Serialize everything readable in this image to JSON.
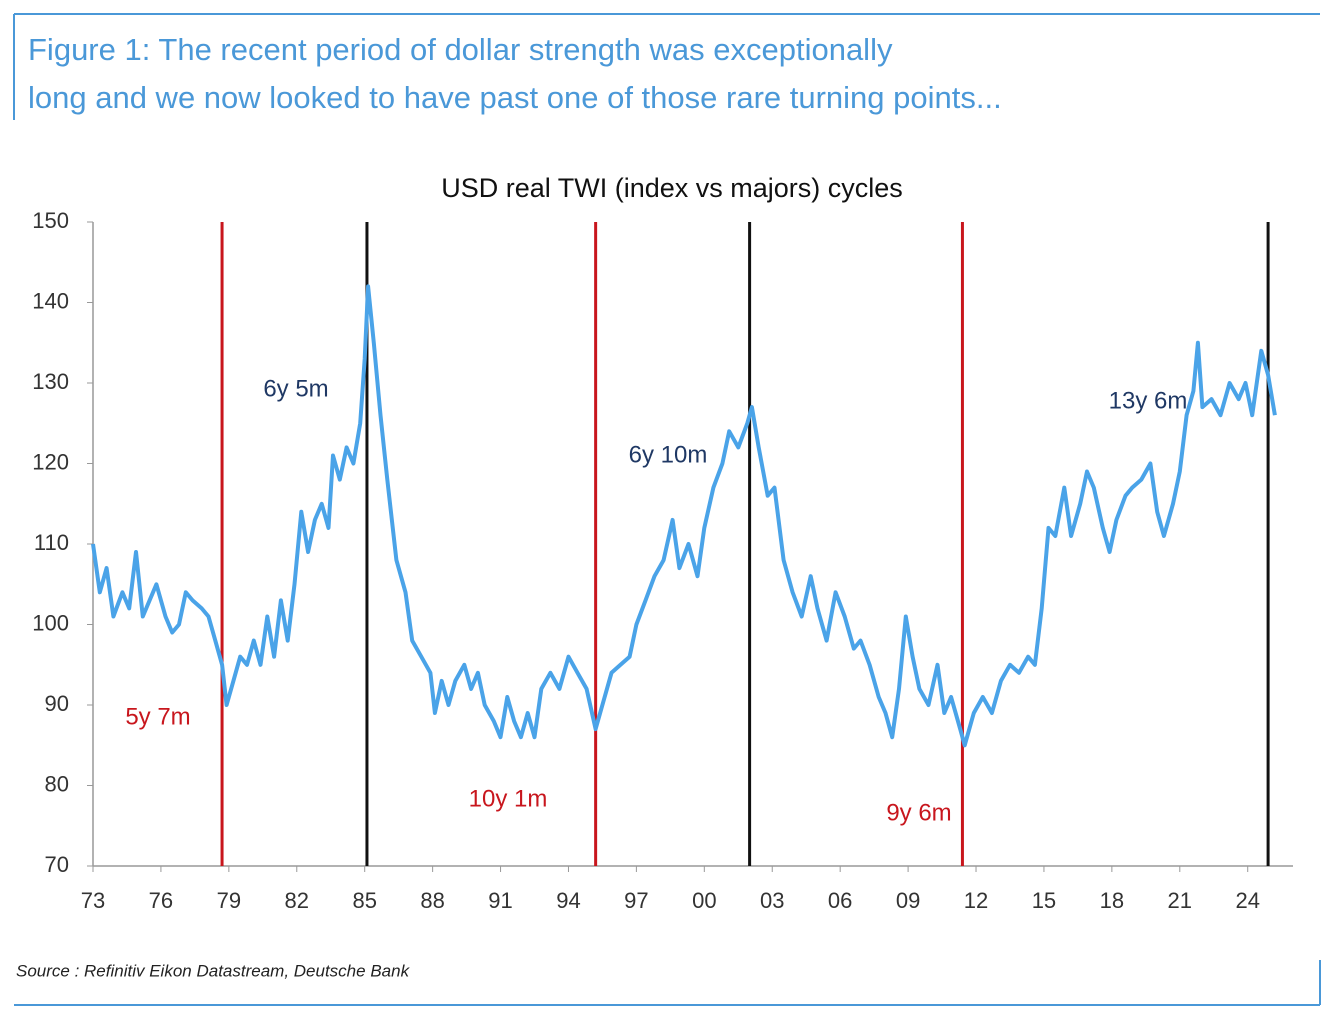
{
  "header": {
    "title_lines": [
      "Figure 1: The recent period of dollar strength was exceptionally",
      "long and we now looked to have past one of those rare turning points..."
    ]
  },
  "chart_data": {
    "type": "line",
    "title": "USD real TWI (index vs majors) cycles",
    "color": "#4aa3e8",
    "x": [
      1973.0,
      1973.3,
      1973.6,
      1973.9,
      1974.3,
      1974.6,
      1974.9,
      1975.2,
      1975.5,
      1975.8,
      1976.2,
      1976.5,
      1976.8,
      1977.1,
      1977.4,
      1977.8,
      1978.1,
      1978.4,
      1978.7,
      1978.9,
      1979.2,
      1979.5,
      1979.8,
      1980.1,
      1980.4,
      1980.7,
      1981.0,
      1981.3,
      1981.6,
      1981.9,
      1982.2,
      1982.5,
      1982.8,
      1983.1,
      1983.4,
      1983.6,
      1983.9,
      1984.2,
      1984.5,
      1984.8,
      1985.0,
      1985.15,
      1985.4,
      1985.7,
      1986.0,
      1986.4,
      1986.8,
      1987.1,
      1987.5,
      1987.9,
      1988.1,
      1988.4,
      1988.7,
      1989.0,
      1989.4,
      1989.7,
      1990.0,
      1990.3,
      1990.7,
      1991.0,
      1991.3,
      1991.6,
      1991.9,
      1992.2,
      1992.5,
      1992.8,
      1993.2,
      1993.6,
      1994.0,
      1994.4,
      1994.8,
      1995.2,
      1995.5,
      1995.9,
      1996.3,
      1996.7,
      1997.0,
      1997.4,
      1997.8,
      1998.2,
      1998.6,
      1998.9,
      1999.3,
      1999.7,
      2000.0,
      2000.4,
      2000.8,
      2001.1,
      2001.5,
      2001.9,
      2002.1,
      2002.4,
      2002.8,
      2003.1,
      2003.5,
      2003.9,
      2004.3,
      2004.7,
      2005.0,
      2005.4,
      2005.8,
      2006.2,
      2006.6,
      2006.9,
      2007.3,
      2007.7,
      2008.0,
      2008.3,
      2008.6,
      2008.9,
      2009.2,
      2009.5,
      2009.9,
      2010.3,
      2010.6,
      2010.9,
      2011.3,
      2011.5,
      2011.9,
      2012.3,
      2012.7,
      2013.1,
      2013.5,
      2013.9,
      2014.3,
      2014.6,
      2014.9,
      2015.2,
      2015.5,
      2015.9,
      2016.2,
      2016.6,
      2016.9,
      2017.2,
      2017.6,
      2017.9,
      2018.2,
      2018.6,
      2018.9,
      2019.3,
      2019.7,
      2020.0,
      2020.3,
      2020.7,
      2021.0,
      2021.3,
      2021.6,
      2021.8,
      2022.0,
      2022.4,
      2022.8,
      2023.2,
      2023.6,
      2023.9,
      2024.2,
      2024.6,
      2024.9,
      2025.2
    ],
    "values": [
      110,
      104,
      107,
      101,
      104,
      102,
      109,
      101,
      103,
      105,
      101,
      99,
      100,
      104,
      103,
      102,
      101,
      98,
      95,
      90,
      93,
      96,
      95,
      98,
      95,
      101,
      96,
      103,
      98,
      105,
      114,
      109,
      113,
      115,
      112,
      121,
      118,
      122,
      120,
      125,
      133,
      142,
      135,
      126,
      118,
      108,
      104,
      98,
      96,
      94,
      89,
      93,
      90,
      93,
      95,
      92,
      94,
      90,
      88,
      86,
      91,
      88,
      86,
      89,
      86,
      92,
      94,
      92,
      96,
      94,
      92,
      87,
      90,
      94,
      95,
      96,
      100,
      103,
      106,
      108,
      113,
      107,
      110,
      106,
      112,
      117,
      120,
      124,
      122,
      125,
      127,
      122,
      116,
      117,
      108,
      104,
      101,
      106,
      102,
      98,
      104,
      101,
      97,
      98,
      95,
      91,
      89,
      86,
      92,
      101,
      96,
      92,
      90,
      95,
      89,
      91,
      87,
      85,
      89,
      91,
      89,
      93,
      95,
      94,
      96,
      95,
      102,
      112,
      111,
      117,
      111,
      115,
      119,
      117,
      112,
      109,
      113,
      116,
      117,
      118,
      120,
      114,
      111,
      115,
      119,
      126,
      129,
      135,
      127,
      128,
      126,
      130,
      128,
      130,
      126,
      134,
      131,
      126
    ],
    "xlim": [
      1973,
      2026
    ],
    "xticks": [
      {
        "value": 1973,
        "label": "73"
      },
      {
        "value": 1976,
        "label": "76"
      },
      {
        "value": 1979,
        "label": "79"
      },
      {
        "value": 1982,
        "label": "82"
      },
      {
        "value": 1985,
        "label": "85"
      },
      {
        "value": 1988,
        "label": "88"
      },
      {
        "value": 1991,
        "label": "91"
      },
      {
        "value": 1994,
        "label": "94"
      },
      {
        "value": 1997,
        "label": "97"
      },
      {
        "value": 2000,
        "label": "00"
      },
      {
        "value": 2003,
        "label": "03"
      },
      {
        "value": 2006,
        "label": "06"
      },
      {
        "value": 2009,
        "label": "09"
      },
      {
        "value": 2012,
        "label": "12"
      },
      {
        "value": 2015,
        "label": "15"
      },
      {
        "value": 2018,
        "label": "18"
      },
      {
        "value": 2021,
        "label": "21"
      },
      {
        "value": 2024,
        "label": "24"
      }
    ],
    "ylim": [
      70,
      150
    ],
    "yticks": [
      70,
      80,
      90,
      100,
      110,
      120,
      130,
      140,
      150
    ],
    "vlines": [
      {
        "x": 1978.7,
        "color": "#c8161d"
      },
      {
        "x": 1985.1,
        "color": "#111111"
      },
      {
        "x": 1995.2,
        "color": "#c8161d"
      },
      {
        "x": 2002.0,
        "color": "#111111"
      },
      {
        "x": 2011.4,
        "color": "#c8161d"
      },
      {
        "x": 2024.9,
        "color": "#111111"
      }
    ],
    "annotations": [
      {
        "text": "6y 5m",
        "color": "#1f3864"
      },
      {
        "text": "5y 7m",
        "color": "#c8161d"
      },
      {
        "text": "10y 1m",
        "color": "#c8161d"
      },
      {
        "text": "6y 10m",
        "color": "#1f3864"
      },
      {
        "text": "9y 6m",
        "color": "#c8161d"
      },
      {
        "text": "13y 6m",
        "color": "#1f3864"
      }
    ]
  },
  "source": "Source : Refinitiv Eikon Datastream, Deutsche Bank"
}
